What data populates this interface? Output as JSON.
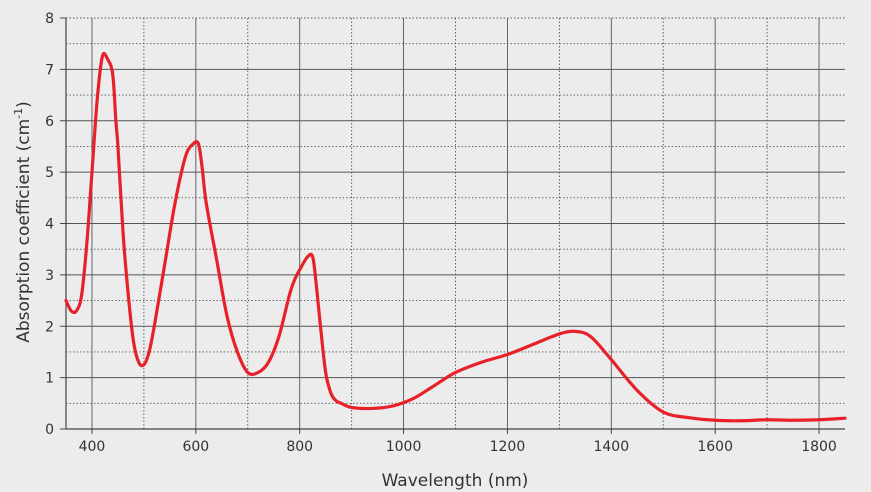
{
  "chart_data": {
    "type": "line",
    "title": "",
    "xlabel": "Wavelength (nm)",
    "ylabel_main": "Absorption coefficient (cm",
    "ylabel_sup": "-1",
    "ylabel_close": ")",
    "xlim": [
      350,
      1850
    ],
    "ylim": [
      0,
      8
    ],
    "x_ticks": [
      400,
      600,
      800,
      1000,
      1200,
      1400,
      1600,
      1800
    ],
    "y_ticks": [
      0,
      1,
      2,
      3,
      4,
      5,
      6,
      7,
      8
    ],
    "grid": "solid major lines with dotted minor lines",
    "colors": {
      "background": "#ececec",
      "line": "#e8202a",
      "grid": "#555555",
      "axis": "#444444"
    },
    "series": [
      {
        "x": [
          350,
          360,
          370,
          380,
          390,
          400,
          410,
          420,
          430,
          440,
          446,
          450,
          460,
          470,
          480,
          490,
          500,
          510,
          520,
          540,
          560,
          580,
          595,
          605,
          612,
          620,
          640,
          660,
          680,
          700,
          720,
          740,
          760,
          780,
          790,
          800,
          815,
          825,
          832,
          840,
          850,
          860,
          870,
          880,
          900,
          940,
          980,
          1020,
          1060,
          1100,
          1150,
          1200,
          1250,
          1300,
          1330,
          1360,
          1400,
          1450,
          1500,
          1550,
          1600,
          1650,
          1700,
          1750,
          1800,
          1850
        ],
        "y": [
          2.5,
          2.3,
          2.3,
          2.6,
          3.6,
          5.0,
          6.4,
          7.25,
          7.2,
          6.9,
          6.0,
          5.5,
          3.8,
          2.6,
          1.7,
          1.3,
          1.25,
          1.5,
          2.0,
          3.2,
          4.4,
          5.3,
          5.55,
          5.55,
          5.1,
          4.4,
          3.3,
          2.2,
          1.5,
          1.1,
          1.1,
          1.3,
          1.8,
          2.6,
          2.9,
          3.1,
          3.35,
          3.35,
          2.8,
          2.0,
          1.1,
          0.7,
          0.55,
          0.5,
          0.42,
          0.4,
          0.45,
          0.6,
          0.85,
          1.1,
          1.3,
          1.45,
          1.65,
          1.85,
          1.9,
          1.8,
          1.35,
          0.75,
          0.33,
          0.22,
          0.17,
          0.16,
          0.18,
          0.17,
          0.18,
          0.21
        ]
      }
    ]
  }
}
